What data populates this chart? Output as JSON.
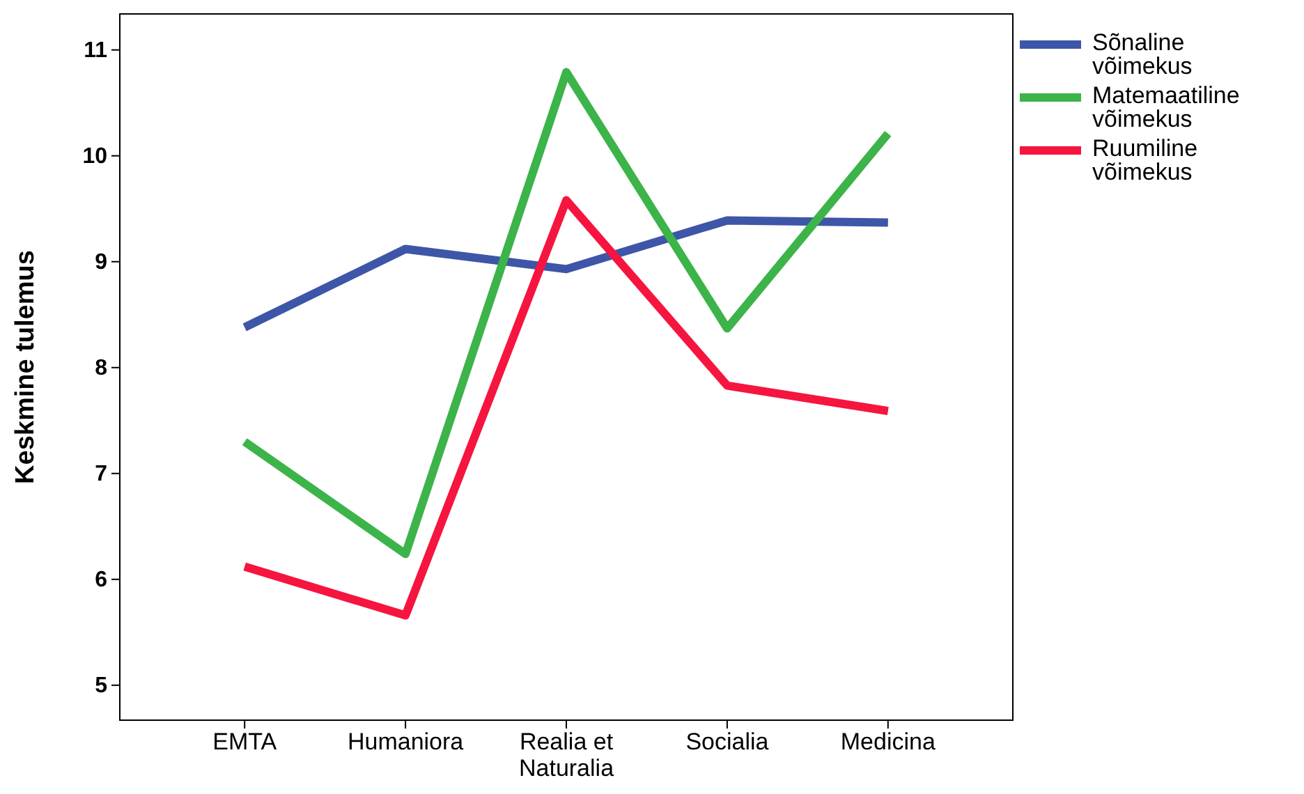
{
  "chart_data": {
    "type": "line",
    "ylabel": "Keskmine tulemus",
    "categories": [
      "EMTA",
      "Humaniora",
      "Realia et Naturalia",
      "Socialia",
      "Medicina"
    ],
    "ylim": [
      4.67,
      11.34
    ],
    "yticks": [
      5,
      6,
      7,
      8,
      9,
      10,
      11
    ],
    "grid": false,
    "legend": "right",
    "marker": "none",
    "line_style": "solid",
    "series": [
      {
        "name": "Sõnaline võimekus",
        "color": "#3e56a8",
        "values": [
          8.38,
          9.12,
          8.93,
          9.39,
          9.37
        ]
      },
      {
        "name": "Matemaatiline võimekus",
        "color": "#3cb44a",
        "values": [
          7.3,
          6.24,
          10.79,
          8.37,
          10.21
        ]
      },
      {
        "name": "Ruumiline võimekus",
        "color": "#f5153f",
        "values": [
          6.12,
          5.66,
          9.58,
          7.83,
          7.59
        ]
      }
    ]
  }
}
